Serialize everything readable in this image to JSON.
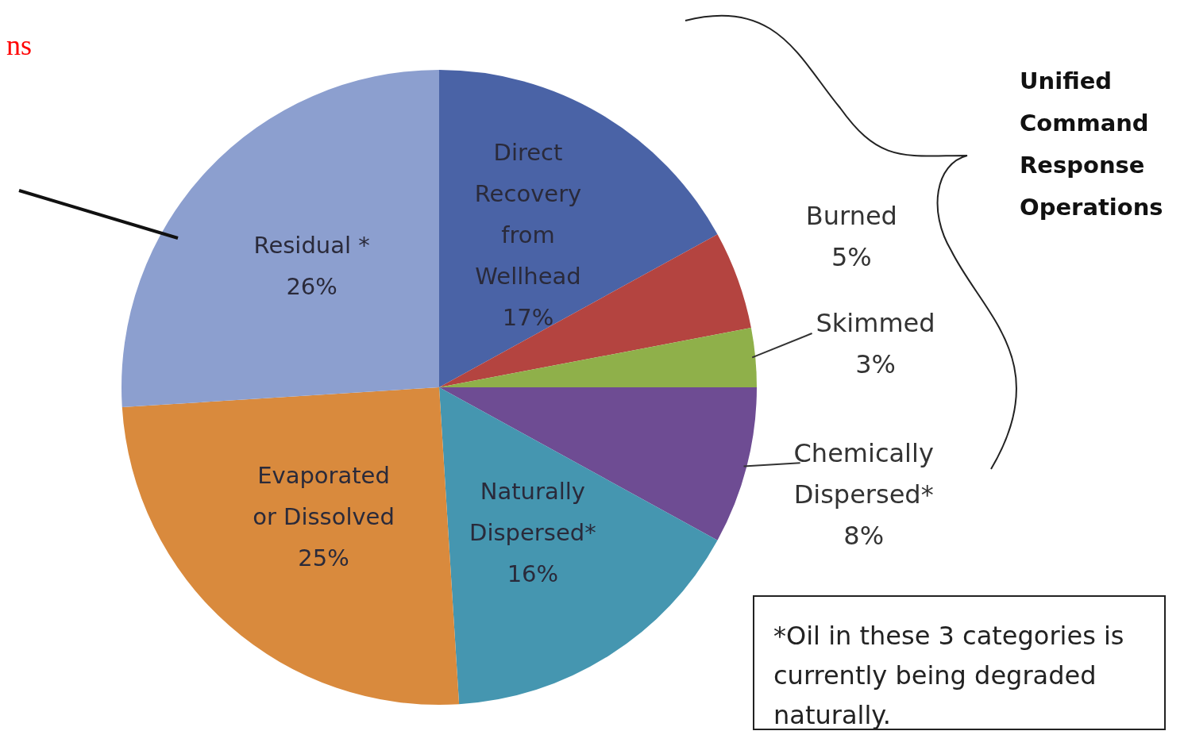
{
  "chart_data": {
    "type": "pie",
    "categories": [
      "Direct Recovery from Wellhead",
      "Burned",
      "Skimmed",
      "Chemically Dispersed*",
      "Naturally Dispersed*",
      "Evaporated or Dissolved",
      "Residual *"
    ],
    "values": [
      17,
      5,
      3,
      8,
      16,
      25,
      26
    ],
    "value_labels": [
      "17%",
      "5%",
      "3%",
      "8%",
      "16%",
      "25%",
      "26%"
    ],
    "colors": [
      "#4a63a6",
      "#b44440",
      "#8fb04a",
      "#6e4c93",
      "#4596b0",
      "#d98a3d",
      "#8c9fcf"
    ],
    "legend": false,
    "annotations": [
      "ns",
      "Unified Command Response Operations",
      "*Oil in these 3 categories is currently being degraded naturally."
    ]
  }
}
